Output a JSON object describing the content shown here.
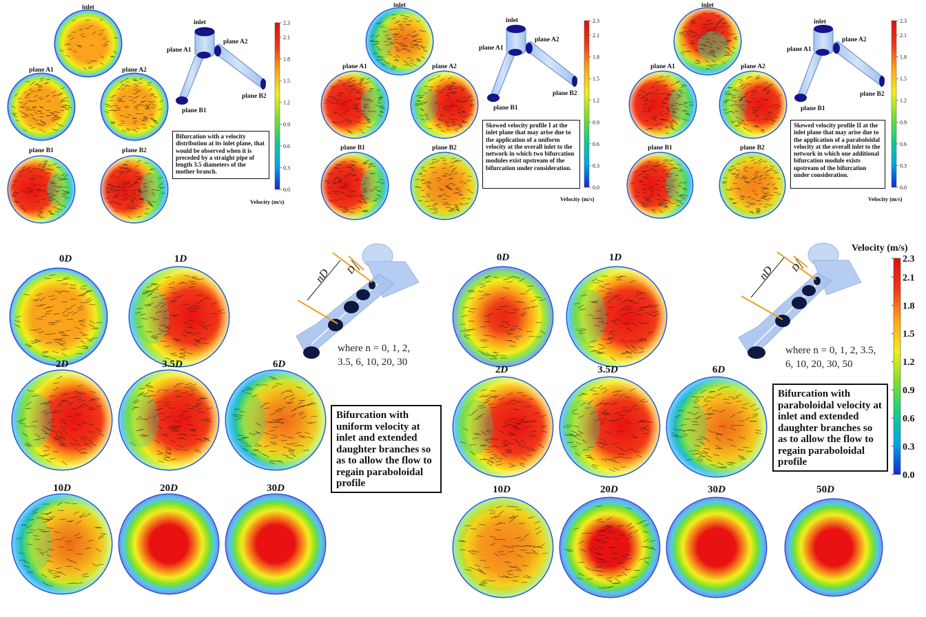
{
  "colorbar": {
    "ticks": [
      "2.3",
      "2.1",
      "1.8",
      "1.5",
      "1.2",
      "0.9",
      "0.6",
      "0.3",
      "0.0"
    ],
    "label": "Velocity (m/s)",
    "colors": [
      "#1428d0",
      "#00a8e6",
      "#18cc88",
      "#7ee02a",
      "#f2ee1e",
      "#fca41c",
      "#f03618",
      "#d81010"
    ]
  },
  "panel_top_1": {
    "circle_labels": [
      "inlet",
      "plane A1",
      "plane A2",
      "plane B1",
      "plane B2"
    ],
    "geometry_labels": [
      "inlet",
      "plane A1",
      "plane A2",
      "plane B1",
      "plane B2"
    ],
    "note": "Bifurcation with a velocity distribution at its inlet plane, that would be observed when it is preceded by a straight pipe of length 3.5 diameters of the mother branch."
  },
  "panel_top_2": {
    "circle_labels": [
      "inlet",
      "plane A1",
      "plane A2",
      "plane B1",
      "plane B2"
    ],
    "geometry_labels": [
      "inlet",
      "plane A1",
      "plane A2",
      "plane B1",
      "plane B2"
    ],
    "note": "Skewed velocity profile I at the inlet plane that may arise due to the application of a uniform velocity at the overall inlet to the network in which two bifurcation modules exist upstream of the bifurcation under consideration."
  },
  "panel_top_3": {
    "circle_labels": [
      "inlet",
      "plane A1",
      "plane A2",
      "plane B1",
      "plane B2"
    ],
    "geometry_labels": [
      "inlet",
      "plane A1",
      "plane A2",
      "plane B1",
      "plane B2"
    ],
    "note": "Skewed velocity profile II at the inlet plane that may arise due to the application of a paraboloidal velocity at the overall inlet to the network in which one additional bifurcation module exists upstream of the bifurcation under consideration."
  },
  "panel_bottom_left": {
    "positions": [
      {
        "num": "0",
        "unit": "D"
      },
      {
        "num": "1",
        "unit": "D"
      },
      {
        "num": "2",
        "unit": "D"
      },
      {
        "num": "3.5",
        "unit": "D"
      },
      {
        "num": "6",
        "unit": "D"
      },
      {
        "num": "10",
        "unit": "D"
      },
      {
        "num": "20",
        "unit": "D"
      },
      {
        "num": "30",
        "unit": "D"
      }
    ],
    "diagram": {
      "nd": "nD",
      "d": "D"
    },
    "where_line1": "where n = 0, 1, 2,",
    "where_line2": "3.5, 6, 10, 20, 30",
    "note": "Bifurcation with uniform velocity at inlet and extended daughter branches so as to allow the flow to regain paraboloidal profile"
  },
  "panel_bottom_right": {
    "positions": [
      {
        "num": "0",
        "unit": "D"
      },
      {
        "num": "1",
        "unit": "D"
      },
      {
        "num": "2",
        "unit": "D"
      },
      {
        "num": "3.5",
        "unit": "D"
      },
      {
        "num": "6",
        "unit": "D"
      },
      {
        "num": "10",
        "unit": "D"
      },
      {
        "num": "20",
        "unit": "D"
      },
      {
        "num": "30",
        "unit": "D"
      },
      {
        "num": "50",
        "unit": "D"
      }
    ],
    "diagram": {
      "nd": "nD",
      "d": "D"
    },
    "where_line1": "where n = 0, 1, 2, 3.5,",
    "where_line2": "6, 10, 20, 30, 50",
    "note": "Bifurcation with paraboloidal velocity at inlet and extended daughter branches so as to allow the flow to regain paraboloidal profile"
  }
}
